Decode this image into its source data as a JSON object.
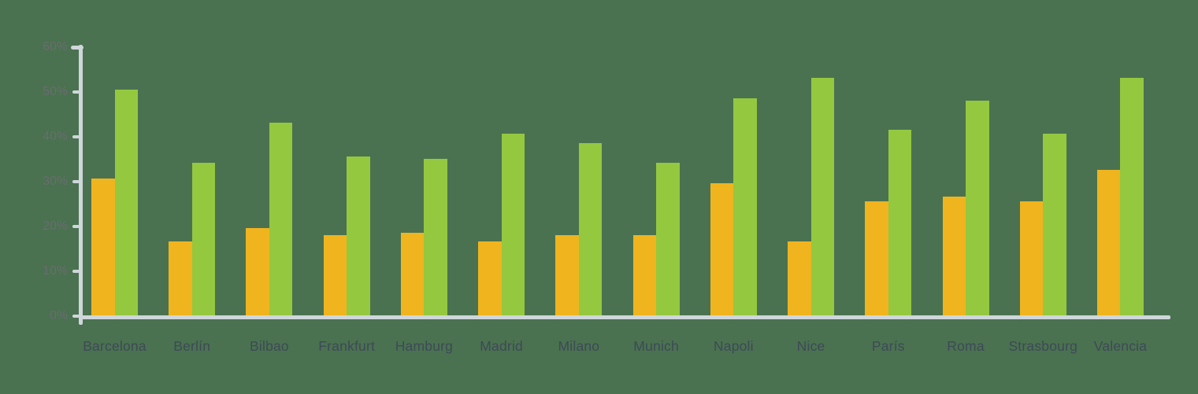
{
  "chart_data": {
    "type": "bar",
    "title": "",
    "xlabel": "",
    "ylabel": "",
    "categories": [
      "Barcelona",
      "Berlín",
      "Bilbao",
      "Frankfurt",
      "Hamburg",
      "Madrid",
      "Milano",
      "Munich",
      "Napoli",
      "Nice",
      "París",
      "Roma",
      "Strasbourg",
      "Valencia"
    ],
    "series": [
      {
        "id": "orange",
        "color": "#EFB41E",
        "values": [
          30.5,
          16.5,
          19.5,
          18,
          18.5,
          16.5,
          18,
          18,
          29.5,
          16.5,
          25.5,
          26.5,
          25.5,
          32.5
        ]
      },
      {
        "id": "green",
        "color": "#93C83F",
        "values": [
          50.5,
          34,
          43,
          35.5,
          35,
          40.5,
          38.5,
          34,
          48.5,
          53,
          41.5,
          48,
          40.5,
          53
        ]
      }
    ],
    "ylim": [
      0,
      60
    ],
    "y_tick_step": 10,
    "y_tick_labels": [
      "0%",
      "10%",
      "20%",
      "30%",
      "40%",
      "50%",
      "60%"
    ],
    "grid": "off",
    "legend": "none"
  },
  "colors": {
    "background": "#4A7150",
    "axis": "#CFD7DA",
    "y_tick_label": "#696D6F",
    "x_tick_label": "#3E4A57"
  }
}
